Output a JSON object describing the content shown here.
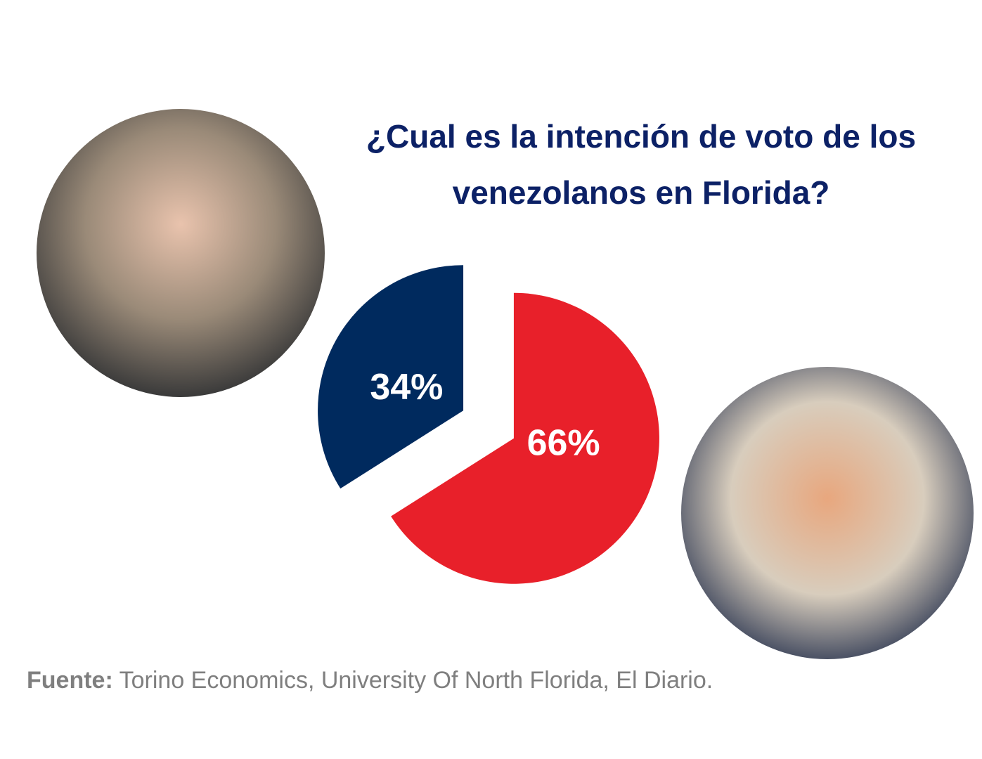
{
  "chart_data": {
    "type": "pie",
    "title": [
      "¿Cual es la intención de voto de los",
      "venezolanos en Florida?"
    ],
    "values": [
      34,
      66
    ],
    "value_labels": [
      "34%",
      "66%"
    ],
    "colors": [
      "#002a5e",
      "#e8202a"
    ],
    "source_label": "Fuente:",
    "source": "Torino Economics, University Of North Florida, El Diario."
  }
}
